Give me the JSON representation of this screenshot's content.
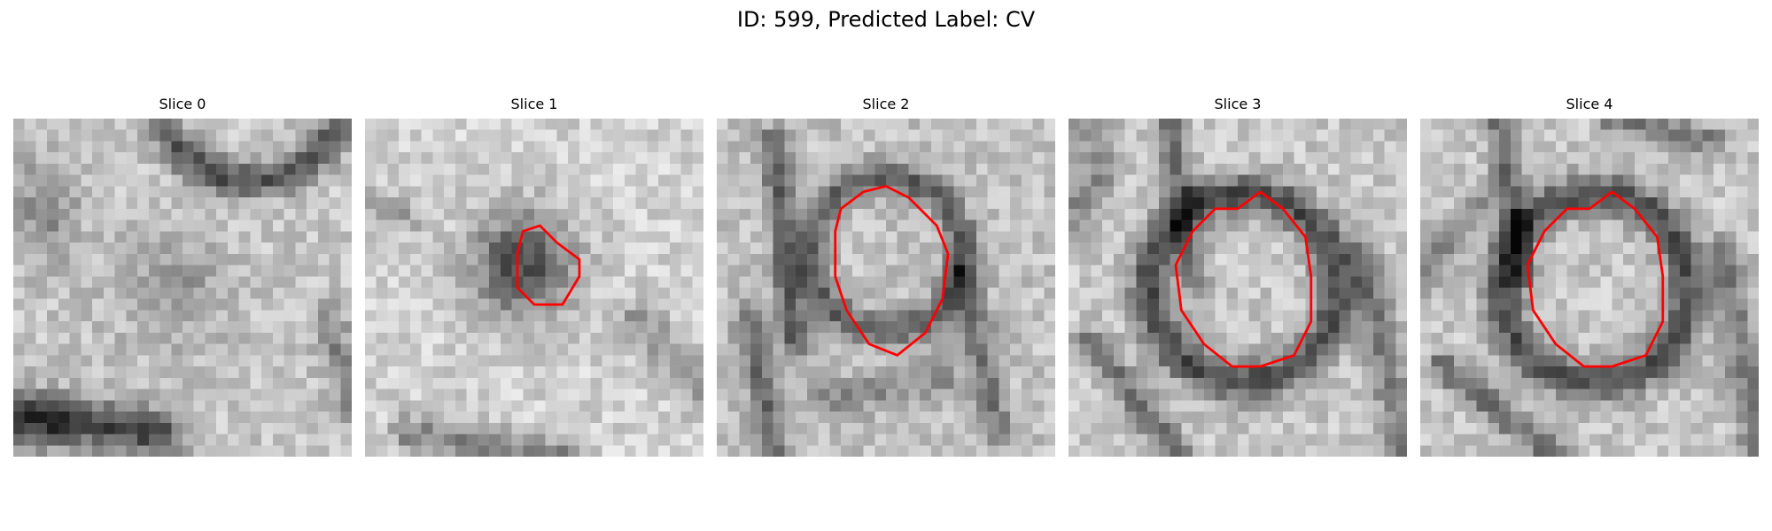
{
  "figure": {
    "title": "ID: 599, Predicted Label: CV"
  },
  "slices": [
    {
      "label": "Slice 0",
      "contour": false,
      "contour_color": "#ff0000"
    },
    {
      "label": "Slice 1",
      "contour": true,
      "contour_color": "#ff0000"
    },
    {
      "label": "Slice 2",
      "contour": true,
      "contour_color": "#ff0000"
    },
    {
      "label": "Slice 3",
      "contour": true,
      "contour_color": "#ff0000"
    },
    {
      "label": "Slice 4",
      "contour": true,
      "contour_color": "#ff0000"
    }
  ]
}
